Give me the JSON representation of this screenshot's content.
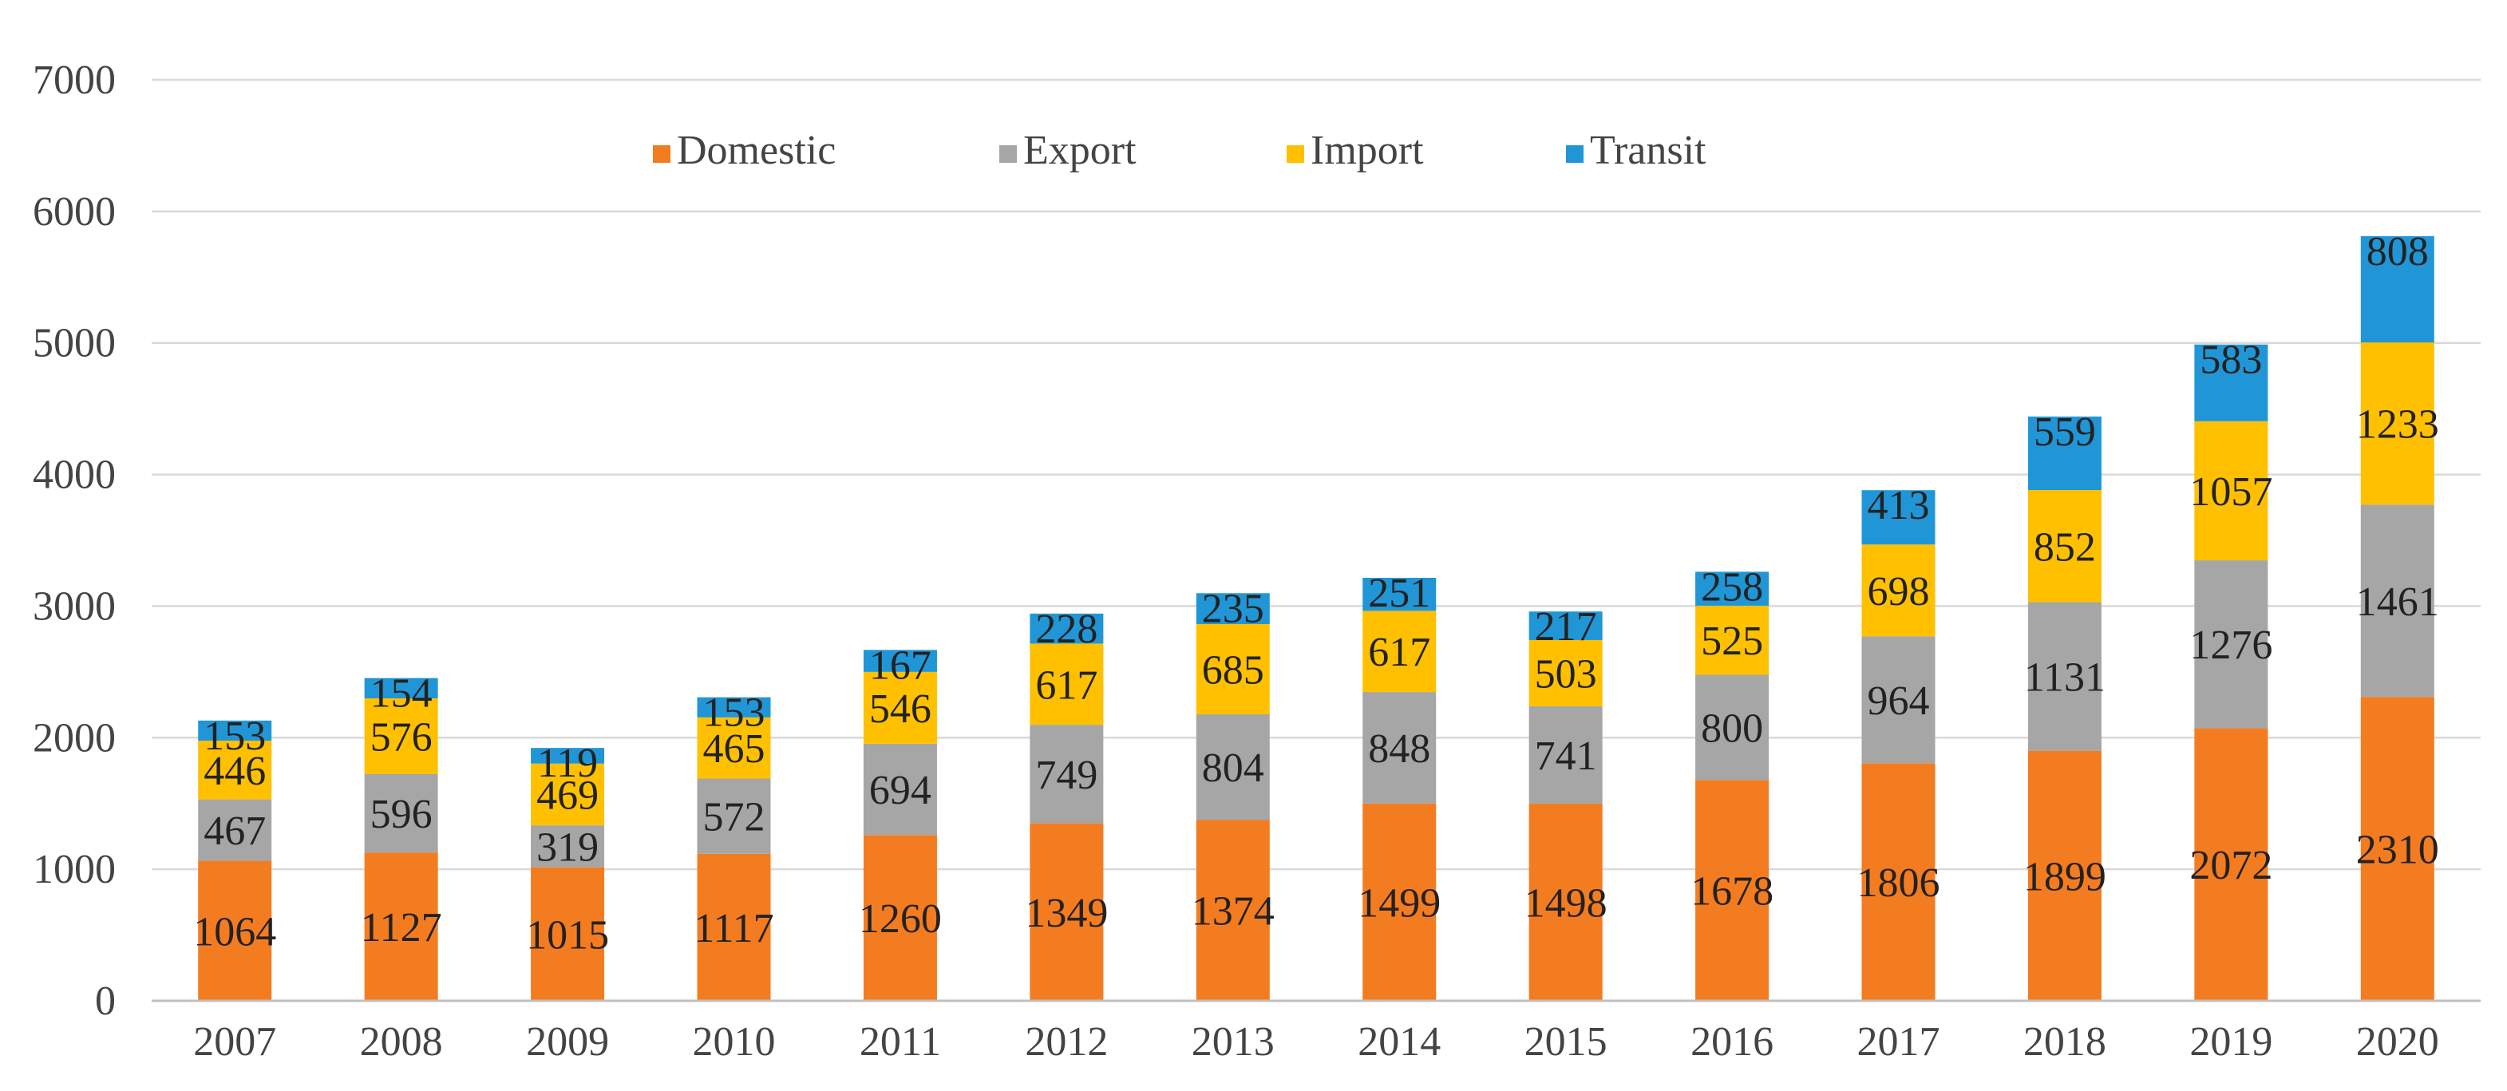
{
  "chart_data": {
    "type": "bar",
    "stacked": true,
    "title": "",
    "xlabel": "",
    "ylabel": "",
    "ylim": [
      0,
      7000
    ],
    "yticks": [
      0,
      1000,
      2000,
      3000,
      4000,
      5000,
      6000,
      7000
    ],
    "grid": true,
    "legend_position": "top-center",
    "categories": [
      "2007",
      "2008",
      "2009",
      "2010",
      "2011",
      "2012",
      "2013",
      "2014",
      "2015",
      "2016",
      "2017",
      "2018",
      "2019",
      "2020"
    ],
    "series": [
      {
        "name": "Domestic",
        "color": "#f47c20",
        "values": [
          1064,
          1127,
          1015,
          1117,
          1260,
          1349,
          1374,
          1499,
          1498,
          1678,
          1806,
          1899,
          2072,
          2310
        ]
      },
      {
        "name": "Export",
        "color": "#a6a6a6",
        "values": [
          467,
          596,
          319,
          572,
          694,
          749,
          804,
          848,
          741,
          800,
          964,
          1131,
          1276,
          1461
        ]
      },
      {
        "name": "Import",
        "color": "#ffc000",
        "values": [
          446,
          576,
          469,
          465,
          546,
          617,
          685,
          617,
          503,
          525,
          698,
          852,
          1057,
          1233
        ]
      },
      {
        "name": "Transit",
        "color": "#2196d6",
        "values": [
          153,
          154,
          119,
          153,
          167,
          228,
          235,
          251,
          217,
          258,
          413,
          559,
          583,
          808
        ]
      }
    ]
  }
}
